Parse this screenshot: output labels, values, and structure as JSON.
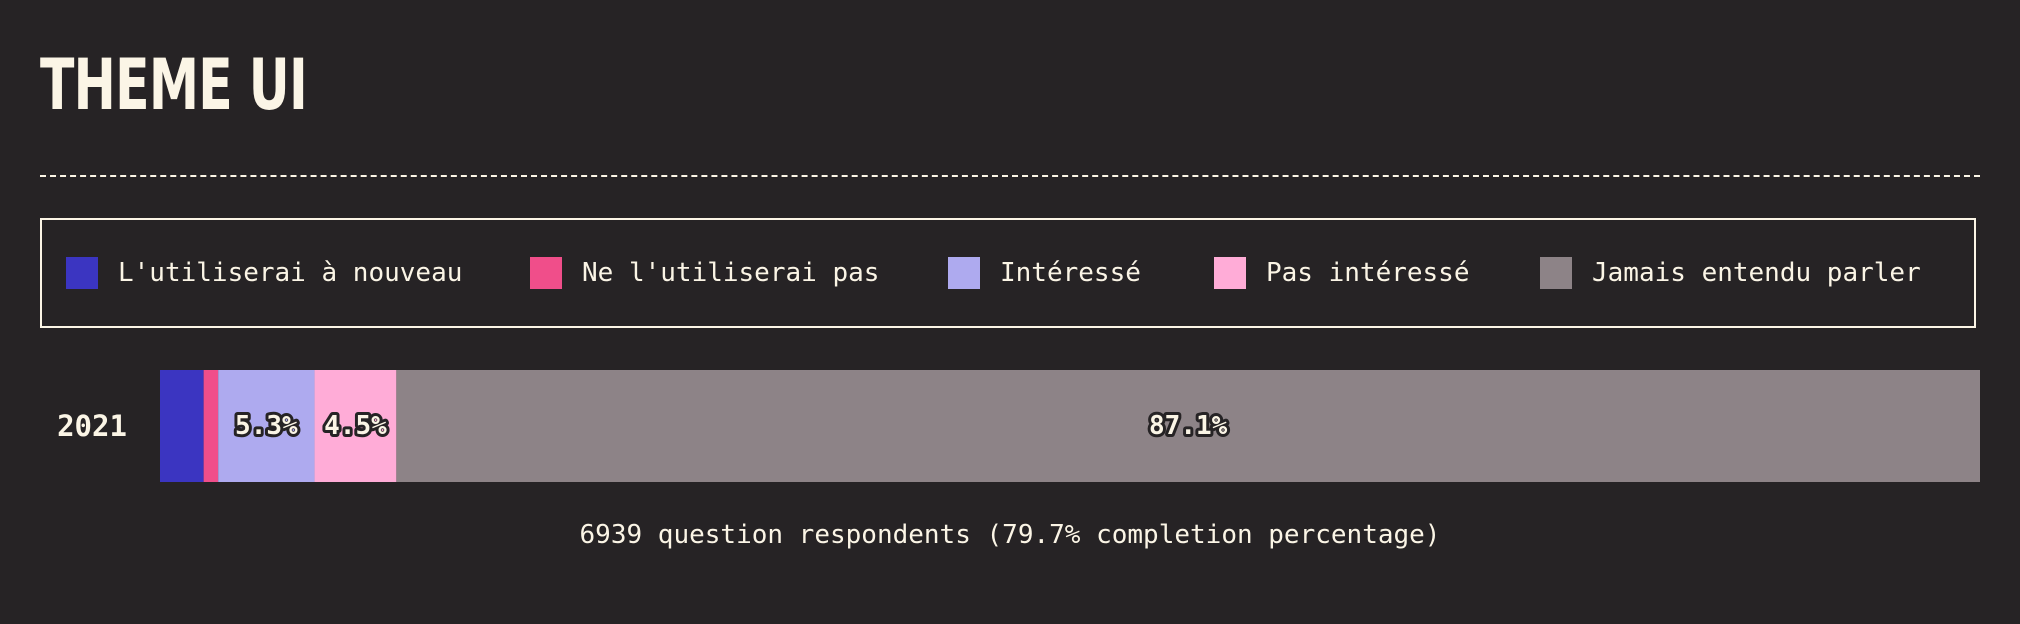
{
  "title": "THEME UI",
  "chart_data": {
    "type": "bar",
    "orientation": "horizontal",
    "stacked": true,
    "normalized": true,
    "categories": [
      "2021"
    ],
    "legend_position": "top",
    "series": [
      {
        "name": "L'utiliserai à nouveau",
        "values": [
          2.4
        ],
        "color": "#3b35c1",
        "label": ""
      },
      {
        "name": "Ne l'utiliserai pas",
        "values": [
          0.8
        ],
        "color": "#f04e8a",
        "label": ""
      },
      {
        "name": "Intéressé",
        "values": [
          5.3
        ],
        "color": "#aeaaef",
        "label": "5.3%"
      },
      {
        "name": "Pas intéressé",
        "values": [
          4.5
        ],
        "color": "#ffacd7",
        "label": "4.5%"
      },
      {
        "name": "Jamais entendu parler",
        "values": [
          87.1
        ],
        "color": "#8d8387",
        "label": "87.1%"
      }
    ],
    "xlim": [
      0,
      100
    ]
  },
  "footnote": "6939 question respondents (79.7% completion percentage)"
}
